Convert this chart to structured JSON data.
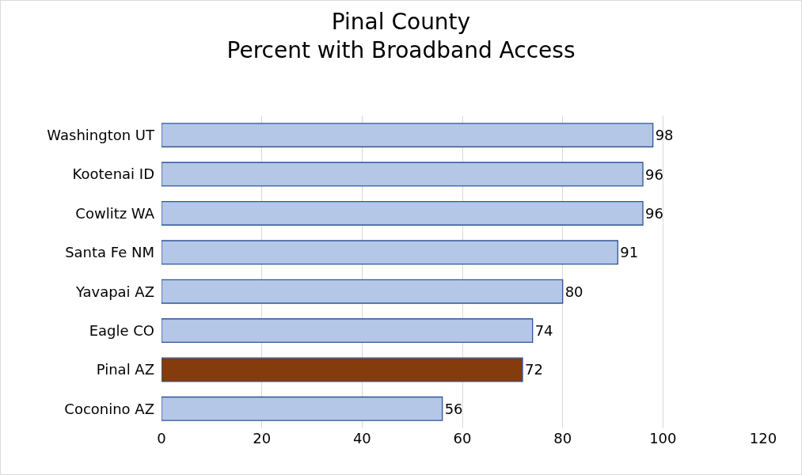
{
  "chart_data": {
    "type": "bar",
    "orientation": "horizontal",
    "title": "Pinal County\nPercent with Broadband Access",
    "categories": [
      "Washington UT",
      "Kootenai ID",
      "Cowlitz WA",
      "Santa Fe NM",
      "Yavapai AZ",
      "Eagle CO",
      "Pinal AZ",
      "Coconino AZ"
    ],
    "values": [
      98,
      96,
      96,
      91,
      80,
      74,
      72,
      56
    ],
    "colors": [
      "#b4c7e7",
      "#b4c7e7",
      "#b4c7e7",
      "#b4c7e7",
      "#b4c7e7",
      "#b4c7e7",
      "#843c0c",
      "#b4c7e7"
    ],
    "xlim": [
      0,
      120
    ],
    "xticks": [
      0,
      20,
      40,
      60,
      80,
      100,
      120
    ],
    "grid": "x",
    "data_labels": true
  }
}
